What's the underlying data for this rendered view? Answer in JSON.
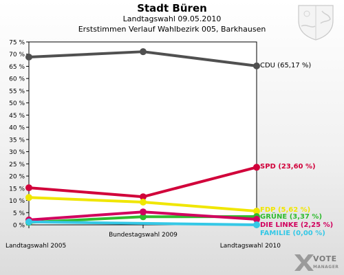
{
  "header": {
    "title": "Stadt Büren",
    "subtitle": "Landtagswahl 09.05.2010",
    "subtitle2": "Erststimmen Verlauf Wahlbezirk 005, Barkhausen"
  },
  "logo": {
    "line1": "VOTE",
    "line2": "MANAGER"
  },
  "chart_data": {
    "type": "line",
    "title": "Stadt Büren",
    "categories": [
      "Landtagswahl 2005",
      "Bundestagswahl 2009",
      "Landtagswahl 2010"
    ],
    "ylim": [
      0,
      75
    ],
    "yticks": [
      0,
      5,
      10,
      15,
      20,
      25,
      30,
      35,
      40,
      45,
      50,
      55,
      60,
      65,
      70,
      75
    ],
    "ytick_suffix": " %",
    "grid": false,
    "series": [
      {
        "name": "CDU",
        "values": [
          68.8,
          71.0,
          65.17
        ],
        "color": "#505050",
        "end_label": "CDU (65,17 %)"
      },
      {
        "name": "SPD",
        "values": [
          15.2,
          11.5,
          23.6
        ],
        "color": "#d1003a",
        "end_label": "SPD (23,60 %)"
      },
      {
        "name": "FDP",
        "values": [
          11.2,
          9.3,
          5.62
        ],
        "color": "#f0e600",
        "end_label": "FDP (5,62 %)"
      },
      {
        "name": "GRÜNE",
        "values": [
          1.0,
          3.3,
          3.37
        ],
        "color": "#2fbb2f",
        "end_label": "GRÜNE (3,37 %)"
      },
      {
        "name": "DIE LINKE",
        "values": [
          2.0,
          5.3,
          2.25
        ],
        "color": "#d1005e",
        "end_label": "DIE LINKE (2,25 %)"
      },
      {
        "name": "FAMILIE",
        "values": [
          1.2,
          null,
          0.0
        ],
        "color": "#35c8e6",
        "end_label": "FAMILIE (0,00 %)"
      }
    ]
  }
}
